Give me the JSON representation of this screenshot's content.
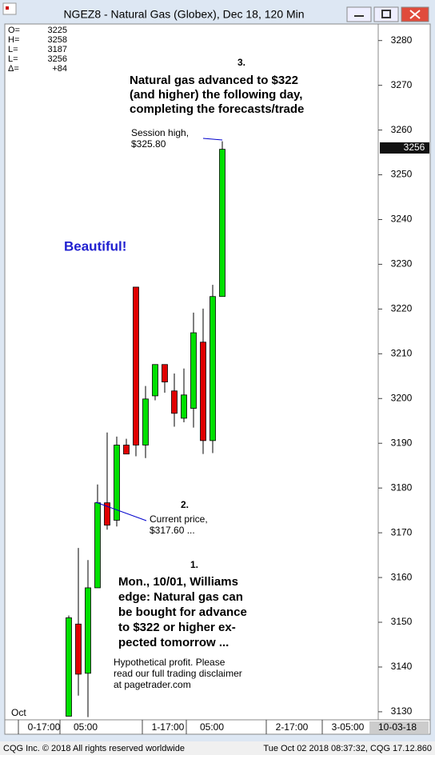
{
  "window_title": "NGEZ8 - Natural Gas (Globex), Dec 18, 120 Min",
  "chart_data": {
    "type": "candlestick",
    "header": [
      {
        "label": "O=",
        "value": "3225"
      },
      {
        "label": "H=",
        "value": "3258"
      },
      {
        "label": "L=",
        "value": "3187"
      },
      {
        "label": "L=",
        "value": "3256"
      },
      {
        "label": "Δ=",
        "value": "+84"
      }
    ],
    "categories": [
      null,
      null,
      null,
      null,
      null,
      null,
      null,
      null,
      null,
      null,
      null,
      null,
      null,
      null,
      null,
      null,
      null
    ],
    "open": [
      3129,
      3149.6,
      3138.6,
      3157.7,
      3176.7,
      3172.8,
      3189.6,
      3224.9,
      3189.6,
      3200.6,
      3207.6,
      3201.7,
      3195.6,
      3197.8,
      3212.6,
      3190.6,
      3222.8
    ],
    "high": [
      3151.5,
      3166.6,
      3163.9,
      3180.8,
      3192.4,
      3191.5,
      3191,
      3224.9,
      3202.8,
      3207.6,
      3207.6,
      3205.6,
      3206.7,
      3219.2,
      3220.1,
      3225.4,
      3257.5
    ],
    "low": [
      3129,
      3133.6,
      3128.8,
      3157.7,
      3170.7,
      3171.4,
      3187.6,
      3187.1,
      3186.7,
      3199.6,
      3201.3,
      3193.7,
      3194.7,
      3193.5,
      3187.6,
      3187.8,
      3222.8
    ],
    "close": [
      3151,
      3138.4,
      3157.7,
      3176.7,
      3171.7,
      3189.6,
      3187.6,
      3189.6,
      3199.9,
      3207.6,
      3203.7,
      3196.7,
      3200.8,
      3214.7,
      3190.6,
      3222.8,
      3255.7
    ],
    "up_color": "#00e000",
    "down_color": "#e00000",
    "ylim": [
      3128.2,
      3283.7
    ],
    "yticks": [
      3130,
      3140,
      3150,
      3160,
      3170,
      3180,
      3190,
      3200,
      3210,
      3220,
      3230,
      3240,
      3250,
      3260,
      3270,
      3280
    ],
    "last_price": 3256,
    "x_axis_labels": [
      "0-17:00",
      "05:00",
      "1-17:00",
      "05:00",
      "2-17:00",
      "3-05:00"
    ],
    "x_axis_date": "10-03-18",
    "month_label": "Oct",
    "annotations": {
      "note3_number": "3.",
      "note3": [
        "Natural gas advanced to $322",
        "(and higher) the following day,",
        "completing the forecasts/trade"
      ],
      "session_high": [
        "Session high,",
        "$325.80"
      ],
      "beautiful": "Beautiful!",
      "note2_number": "2.",
      "current_price": [
        "Current price,",
        "$317.60 ..."
      ],
      "note1_number": "1.",
      "note1": [
        "Mon., 10/01, Williams",
        "edge: Natural gas can",
        "be bought for advance",
        "to $322 or higher ex-",
        "pected tomorrow ..."
      ],
      "disclaimer": [
        "Hypothetical profit. Please",
        "read our full trading disclaimer",
        "at pagetrader.com"
      ]
    }
  },
  "status_left": "CQG Inc. © 2018 All rights reserved worldwide",
  "status_right": "Tue Oct 02 2018 08:37:32, CQG 17.12.860"
}
